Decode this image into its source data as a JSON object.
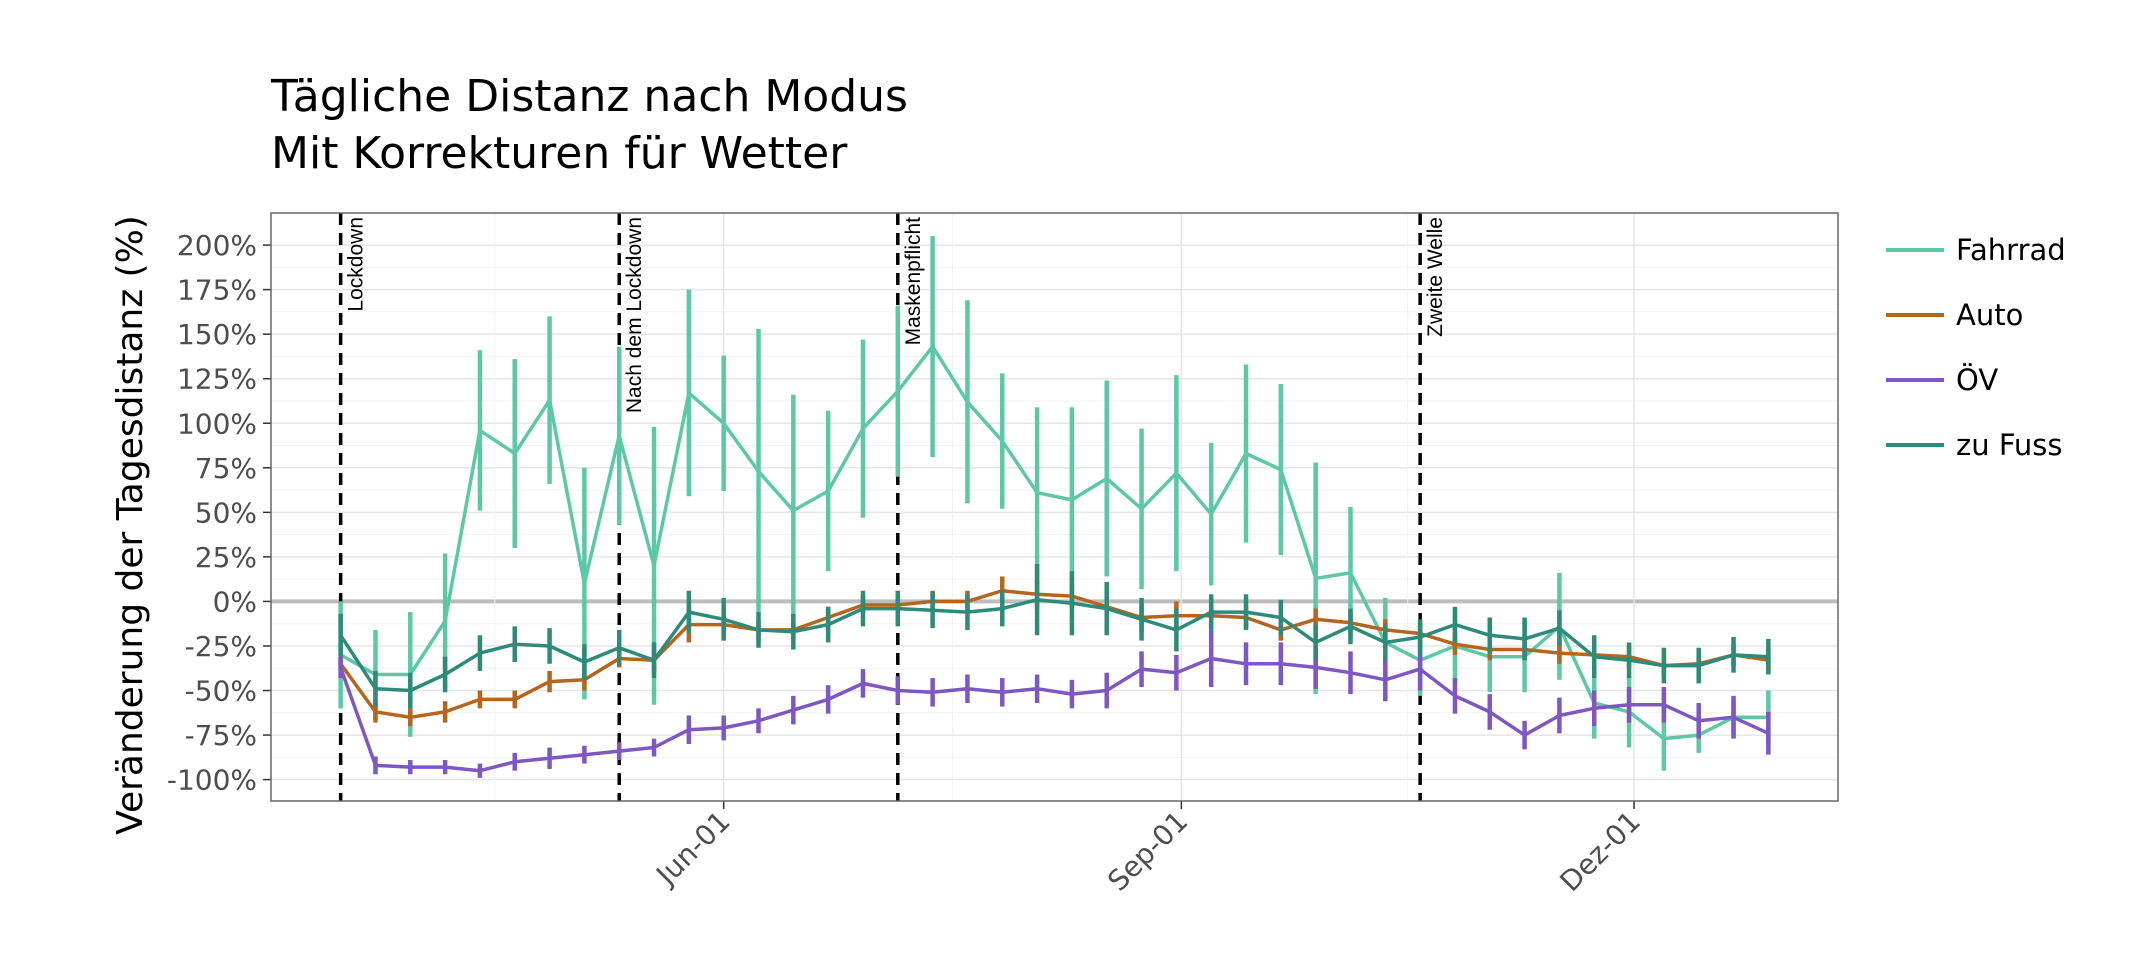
{
  "chart_data": {
    "type": "line",
    "title": [
      "Tägliche Distanz nach Modus",
      "Mit Korrekturen für Wetter"
    ],
    "ylabel": "Veränderung der Tagesdistanz (%)",
    "xlabel": "",
    "x_axis": {
      "start_date": "2020-03-16",
      "end_date": "2020-12-31",
      "xlim": [
        "2020-03-02",
        "2021-01-11"
      ],
      "ticks": [
        {
          "date": "2020-06-01",
          "label": "Jun-01"
        },
        {
          "date": "2020-09-01",
          "label": "Sep-01"
        },
        {
          "date": "2020-12-01",
          "label": "Dez-01"
        }
      ]
    },
    "y_axis": {
      "ylim": [
        -112,
        218
      ],
      "ticks": [
        {
          "value": 200,
          "label": "200%"
        },
        {
          "value": 175,
          "label": "175%"
        },
        {
          "value": 150,
          "label": "150%"
        },
        {
          "value": 125,
          "label": "125%"
        },
        {
          "value": 100,
          "label": "100%"
        },
        {
          "value": 75,
          "label": "75%"
        },
        {
          "value": 50,
          "label": "50%"
        },
        {
          "value": 25,
          "label": "25%"
        },
        {
          "value": 0,
          "label": "0%"
        },
        {
          "value": -25,
          "label": "-25%"
        },
        {
          "value": -50,
          "label": "-50%"
        },
        {
          "value": -75,
          "label": "-75%"
        },
        {
          "value": -100,
          "label": "-100%"
        }
      ]
    },
    "grid": true,
    "legend_position": "right",
    "events": [
      {
        "date": "2020-03-16",
        "label": "Lockdown"
      },
      {
        "date": "2020-05-11",
        "label": "Nach dem Lockdown"
      },
      {
        "date": "2020-07-06",
        "label": "Maskenpflicht"
      },
      {
        "date": "2020-10-19",
        "label": "Zweite Welle"
      }
    ],
    "x_dates": [
      "2020-03-16",
      "2020-03-23",
      "2020-03-30",
      "2020-04-06",
      "2020-04-13",
      "2020-04-20",
      "2020-04-27",
      "2020-05-04",
      "2020-05-11",
      "2020-05-18",
      "2020-05-25",
      "2020-06-01",
      "2020-06-08",
      "2020-06-15",
      "2020-06-22",
      "2020-06-29",
      "2020-07-06",
      "2020-07-13",
      "2020-07-20",
      "2020-07-27",
      "2020-08-03",
      "2020-08-10",
      "2020-08-17",
      "2020-08-24",
      "2020-08-31",
      "2020-09-07",
      "2020-09-14",
      "2020-09-21",
      "2020-09-28",
      "2020-10-05",
      "2020-10-12",
      "2020-10-19",
      "2020-10-26",
      "2020-11-02",
      "2020-11-09",
      "2020-11-16",
      "2020-11-23",
      "2020-11-30",
      "2020-12-07",
      "2020-12-14",
      "2020-12-21",
      "2020-12-28"
    ],
    "series": [
      {
        "name": "Fahrrad",
        "color": "#5cc8a6",
        "values": [
          -30,
          -41,
          -41,
          -11,
          96,
          83,
          113,
          10,
          93,
          20,
          117,
          100,
          73,
          51,
          62,
          97,
          118,
          143,
          112,
          90,
          61,
          57,
          69,
          52,
          72,
          49,
          83,
          74,
          13,
          16,
          -23,
          -33,
          -25,
          -31,
          -31,
          -14,
          -57,
          -62,
          -77,
          -75,
          -65,
          -65
        ],
        "err": [
          30,
          25,
          35,
          38,
          45,
          53,
          47,
          65,
          50,
          78,
          58,
          38,
          80,
          65,
          45,
          50,
          48,
          62,
          57,
          38,
          48,
          52,
          55,
          45,
          55,
          40,
          50,
          48,
          65,
          37,
          25,
          20,
          20,
          20,
          20,
          30,
          20,
          20,
          18,
          10,
          10,
          15
        ]
      },
      {
        "name": "Auto",
        "color": "#b5651d",
        "values": [
          -35,
          -62,
          -65,
          -62,
          -55,
          -55,
          -45,
          -44,
          -32,
          -33,
          -13,
          -13,
          -16,
          -16,
          -9,
          -2,
          -2,
          0,
          0,
          6,
          4,
          3,
          -3,
          -9,
          -8,
          -8,
          -9,
          -16,
          -10,
          -12,
          -16,
          -18,
          -24,
          -27,
          -27,
          -29,
          -30,
          -31,
          -36,
          -35,
          -30,
          -33
        ],
        "err": [
          4,
          6,
          5,
          6,
          5,
          5,
          6,
          6,
          5,
          6,
          10,
          6,
          6,
          5,
          6,
          5,
          5,
          6,
          6,
          8,
          8,
          6,
          6,
          8,
          8,
          6,
          6,
          6,
          6,
          6,
          6,
          6,
          6,
          6,
          6,
          6,
          6,
          6,
          6,
          6,
          6,
          6
        ]
      },
      {
        "name": "ÖV",
        "color": "#7e57c2",
        "values": [
          -37,
          -92,
          -93,
          -93,
          -95,
          -90,
          -88,
          -86,
          -84,
          -82,
          -72,
          -71,
          -67,
          -61,
          -55,
          -46,
          -50,
          -51,
          -49,
          -51,
          -49,
          -52,
          -50,
          -38,
          -40,
          -32,
          -35,
          -35,
          -37,
          -40,
          -44,
          -38,
          -53,
          -62,
          -75,
          -64,
          -60,
          -58,
          -58,
          -67,
          -65,
          -74
        ],
        "err": [
          6,
          5,
          4,
          4,
          4,
          5,
          6,
          5,
          5,
          5,
          8,
          7,
          7,
          8,
          8,
          8,
          8,
          8,
          8,
          8,
          8,
          8,
          10,
          10,
          10,
          16,
          12,
          12,
          12,
          12,
          12,
          12,
          10,
          10,
          8,
          10,
          10,
          10,
          10,
          10,
          12,
          12
        ]
      },
      {
        "name": "zu Fuss",
        "color": "#2e8b7a",
        "values": [
          -19,
          -49,
          -50,
          -41,
          -29,
          -24,
          -25,
          -34,
          -26,
          -33,
          -6,
          -10,
          -16,
          -17,
          -13,
          -4,
          -4,
          -5,
          -6,
          -4,
          1,
          -1,
          -4,
          -10,
          -16,
          -6,
          -6,
          -9,
          -23,
          -14,
          -23,
          -20,
          -13,
          -19,
          -21,
          -15,
          -31,
          -33,
          -36,
          -36,
          -30,
          -31
        ],
        "err": [
          12,
          10,
          10,
          10,
          10,
          10,
          10,
          10,
          10,
          10,
          12,
          12,
          10,
          10,
          10,
          10,
          10,
          10,
          10,
          10,
          20,
          18,
          15,
          12,
          12,
          10,
          10,
          10,
          10,
          10,
          10,
          10,
          10,
          10,
          12,
          10,
          12,
          10,
          10,
          10,
          10,
          10
        ]
      }
    ]
  }
}
